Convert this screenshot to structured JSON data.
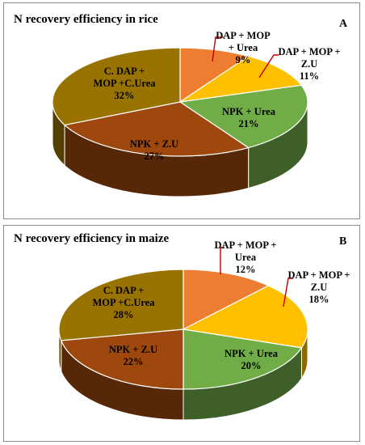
{
  "chart_data": [
    {
      "type": "pie",
      "panel_label": "A",
      "title": "N recovery efficiency in rice",
      "slices": [
        {
          "label": "DAP + MOP + Urea",
          "lines": [
            "DAP + MOP",
            "+ Urea",
            "9%"
          ],
          "value": 9,
          "color": "#ED7D31"
        },
        {
          "label": "DAP + MOP + Z.U",
          "lines": [
            "DAP + MOP +",
            "Z.U",
            "11%"
          ],
          "value": 11,
          "color": "#FFC000"
        },
        {
          "label": "NPK + Urea",
          "lines": [
            "NPK + Urea",
            "21%"
          ],
          "value": 21,
          "color": "#70AD47"
        },
        {
          "label": "NPK + Z.U",
          "lines": [
            "NPK + Z.U",
            "27%"
          ],
          "value": 27,
          "color": "#9E480E"
        },
        {
          "label": "C. DAP + MOP +C.Urea",
          "lines": [
            "C. DAP +",
            "MOP +C.Urea",
            "32%"
          ],
          "value": 32,
          "color": "#997300"
        }
      ]
    },
    {
      "type": "pie",
      "panel_label": "B",
      "title": "N recovery efficiency in maize",
      "slices": [
        {
          "label": "DAP + MOP + Urea",
          "lines": [
            "DAP + MOP +",
            "Urea",
            "12%"
          ],
          "value": 12,
          "color": "#ED7D31"
        },
        {
          "label": "DAP + MOP + Z.U",
          "lines": [
            "DAP + MOP +",
            "Z.U",
            "18%"
          ],
          "value": 18,
          "color": "#FFC000"
        },
        {
          "label": "NPK + Urea",
          "lines": [
            "NPK + Urea",
            "20%"
          ],
          "value": 20,
          "color": "#70AD47"
        },
        {
          "label": "NPK + Z.U",
          "lines": [
            "NPK + Z.U",
            "22%"
          ],
          "value": 22,
          "color": "#9E480E"
        },
        {
          "label": "C. DAP + MOP +C.Urea",
          "lines": [
            "C. DAP +",
            "MOP +C.Urea",
            "28%"
          ],
          "value": 28,
          "color": "#997300"
        }
      ]
    }
  ]
}
